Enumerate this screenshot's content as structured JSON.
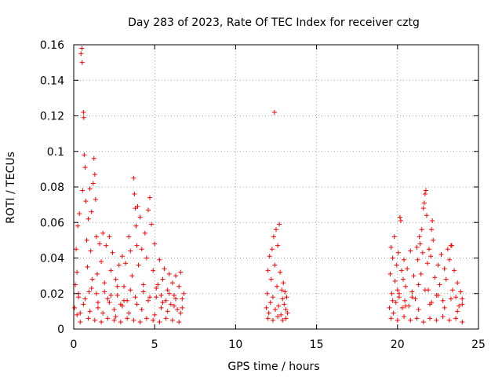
{
  "chart_data": {
    "type": "scatter",
    "title": "Day 283 of 2023, Rate Of TEC Index for receiver cztg",
    "xlabel": "GPS time / hours",
    "ylabel": "ROTI / TECUs",
    "xlim": [
      0,
      25
    ],
    "ylim": [
      0,
      0.16
    ],
    "xticks": [
      0,
      5,
      10,
      15,
      20,
      25
    ],
    "yticks": [
      0,
      0.02,
      0.04,
      0.06,
      0.08,
      0.1,
      0.12,
      0.14,
      0.16
    ],
    "xtick_labels": [
      "0",
      "5",
      "10",
      "15",
      "20",
      "25"
    ],
    "ytick_labels": [
      "0",
      "0.02",
      "0.04",
      "0.06",
      "0.08",
      "0.1",
      "0.12",
      "0.14",
      "0.16"
    ],
    "grid": true,
    "marker": "+",
    "marker_color": "#ff0000",
    "series": [
      {
        "name": "ROTI",
        "points": [
          [
            0.05,
            0.012
          ],
          [
            0.1,
            0.025
          ],
          [
            0.15,
            0.045
          ],
          [
            0.2,
            0.032
          ],
          [
            0.25,
            0.058
          ],
          [
            0.3,
            0.018
          ],
          [
            0.35,
            0.065
          ],
          [
            0.4,
            0.009
          ],
          [
            0.45,
            0.155
          ],
          [
            0.5,
            0.158
          ],
          [
            0.52,
            0.15
          ],
          [
            0.55,
            0.078
          ],
          [
            0.6,
            0.122
          ],
          [
            0.62,
            0.119
          ],
          [
            0.65,
            0.098
          ],
          [
            0.7,
            0.091
          ],
          [
            0.75,
            0.072
          ],
          [
            0.8,
            0.05
          ],
          [
            0.85,
            0.035
          ],
          [
            0.9,
            0.062
          ],
          [
            0.95,
            0.021
          ],
          [
            1.0,
            0.079
          ],
          [
            1.05,
            0.044
          ],
          [
            1.1,
            0.066
          ],
          [
            1.15,
            0.028
          ],
          [
            1.2,
            0.082
          ],
          [
            1.25,
            0.096
          ],
          [
            1.3,
            0.087
          ],
          [
            1.35,
            0.073
          ],
          [
            1.4,
            0.052
          ],
          [
            1.45,
            0.031
          ],
          [
            1.5,
            0.015
          ],
          [
            1.6,
            0.048
          ],
          [
            1.7,
            0.038
          ],
          [
            1.8,
            0.054
          ],
          [
            1.9,
            0.026
          ],
          [
            2.0,
            0.047
          ],
          [
            2.1,
            0.017
          ],
          [
            2.2,
            0.052
          ],
          [
            2.3,
            0.033
          ],
          [
            2.4,
            0.043
          ],
          [
            2.5,
            0.011
          ],
          [
            2.6,
            0.028
          ],
          [
            2.7,
            0.019
          ],
          [
            2.8,
            0.036
          ],
          [
            2.9,
            0.014
          ],
          [
            3.0,
            0.041
          ],
          [
            3.1,
            0.024
          ],
          [
            3.2,
            0.037
          ],
          [
            3.3,
            0.016
          ],
          [
            3.4,
            0.052
          ],
          [
            3.5,
            0.044
          ],
          [
            3.6,
            0.03
          ],
          [
            3.7,
            0.085
          ],
          [
            3.75,
            0.076
          ],
          [
            3.8,
            0.068
          ],
          [
            3.85,
            0.058
          ],
          [
            3.9,
            0.047
          ],
          [
            3.95,
            0.069
          ],
          [
            4.0,
            0.036
          ],
          [
            4.1,
            0.063
          ],
          [
            4.2,
            0.045
          ],
          [
            4.3,
            0.021
          ],
          [
            4.4,
            0.054
          ],
          [
            4.5,
            0.04
          ],
          [
            4.6,
            0.067
          ],
          [
            4.7,
            0.074
          ],
          [
            4.8,
            0.059
          ],
          [
            4.9,
            0.033
          ],
          [
            5.0,
            0.048
          ],
          [
            5.1,
            0.018
          ],
          [
            5.2,
            0.025
          ],
          [
            5.3,
            0.039
          ],
          [
            5.4,
            0.012
          ],
          [
            5.5,
            0.028
          ],
          [
            5.6,
            0.034
          ],
          [
            5.7,
            0.016
          ],
          [
            5.8,
            0.022
          ],
          [
            5.9,
            0.031
          ],
          [
            6.0,
            0.014
          ],
          [
            6.1,
            0.026
          ],
          [
            6.2,
            0.019
          ],
          [
            6.3,
            0.03
          ],
          [
            6.4,
            0.011
          ],
          [
            6.5,
            0.024
          ],
          [
            6.6,
            0.032
          ],
          [
            6.7,
            0.017
          ],
          [
            6.8,
            0.02
          ],
          [
            0.2,
            0.008
          ],
          [
            0.6,
            0.014
          ],
          [
            1.0,
            0.01
          ],
          [
            1.4,
            0.02
          ],
          [
            1.8,
            0.009
          ],
          [
            2.2,
            0.015
          ],
          [
            2.6,
            0.007
          ],
          [
            3.0,
            0.013
          ],
          [
            3.4,
            0.009
          ],
          [
            3.8,
            0.018
          ],
          [
            4.2,
            0.011
          ],
          [
            4.6,
            0.016
          ],
          [
            5.0,
            0.008
          ],
          [
            5.4,
            0.019
          ],
          [
            5.8,
            0.01
          ],
          [
            6.2,
            0.013
          ],
          [
            6.6,
            0.009
          ],
          [
            0.3,
            0.02
          ],
          [
            0.7,
            0.017
          ],
          [
            1.1,
            0.023
          ],
          [
            1.5,
            0.012
          ],
          [
            1.9,
            0.021
          ],
          [
            2.3,
            0.019
          ],
          [
            2.7,
            0.024
          ],
          [
            3.1,
            0.016
          ],
          [
            3.5,
            0.022
          ],
          [
            3.9,
            0.014
          ],
          [
            4.3,
            0.025
          ],
          [
            4.7,
            0.018
          ],
          [
            5.1,
            0.023
          ],
          [
            5.5,
            0.015
          ],
          [
            5.9,
            0.02
          ],
          [
            6.3,
            0.017
          ],
          [
            6.7,
            0.012
          ],
          [
            0.4,
            0.004
          ],
          [
            0.9,
            0.006
          ],
          [
            1.3,
            0.005
          ],
          [
            1.7,
            0.004
          ],
          [
            2.1,
            0.006
          ],
          [
            2.5,
            0.005
          ],
          [
            2.9,
            0.004
          ],
          [
            3.3,
            0.006
          ],
          [
            3.7,
            0.005
          ],
          [
            4.1,
            0.004
          ],
          [
            4.5,
            0.006
          ],
          [
            4.9,
            0.005
          ],
          [
            5.3,
            0.004
          ],
          [
            5.7,
            0.006
          ],
          [
            6.1,
            0.005
          ],
          [
            6.5,
            0.004
          ],
          [
            11.9,
            0.012
          ],
          [
            11.95,
            0.02
          ],
          [
            12.0,
            0.033
          ],
          [
            12.05,
            0.009
          ],
          [
            12.1,
            0.041
          ],
          [
            12.15,
            0.015
          ],
          [
            12.2,
            0.028
          ],
          [
            12.25,
            0.045
          ],
          [
            12.3,
            0.018
          ],
          [
            12.35,
            0.052
          ],
          [
            12.4,
            0.122
          ],
          [
            12.42,
            0.036
          ],
          [
            12.45,
            0.011
          ],
          [
            12.5,
            0.056
          ],
          [
            12.55,
            0.024
          ],
          [
            12.6,
            0.047
          ],
          [
            12.65,
            0.013
          ],
          [
            12.7,
            0.059
          ],
          [
            12.75,
            0.032
          ],
          [
            12.8,
            0.008
          ],
          [
            12.85,
            0.022
          ],
          [
            12.9,
            0.017
          ],
          [
            12.95,
            0.026
          ],
          [
            13.0,
            0.014
          ],
          [
            13.05,
            0.021
          ],
          [
            13.1,
            0.011
          ],
          [
            13.15,
            0.018
          ],
          [
            13.2,
            0.009
          ],
          [
            12.0,
            0.006
          ],
          [
            12.3,
            0.005
          ],
          [
            12.6,
            0.007
          ],
          [
            12.9,
            0.005
          ],
          [
            13.1,
            0.006
          ],
          [
            19.5,
            0.012
          ],
          [
            19.55,
            0.031
          ],
          [
            19.6,
            0.046
          ],
          [
            19.65,
            0.02
          ],
          [
            19.7,
            0.04
          ],
          [
            19.75,
            0.009
          ],
          [
            19.8,
            0.052
          ],
          [
            19.85,
            0.027
          ],
          [
            19.9,
            0.015
          ],
          [
            19.95,
            0.036
          ],
          [
            20.0,
            0.022
          ],
          [
            20.05,
            0.043
          ],
          [
            20.1,
            0.018
          ],
          [
            20.15,
            0.063
          ],
          [
            20.2,
            0.061
          ],
          [
            20.25,
            0.033
          ],
          [
            20.3,
            0.012
          ],
          [
            20.35,
            0.028
          ],
          [
            20.4,
            0.039
          ],
          [
            20.45,
            0.016
          ],
          [
            20.5,
            0.024
          ],
          [
            20.6,
            0.034
          ],
          [
            20.7,
            0.013
          ],
          [
            20.8,
            0.044
          ],
          [
            20.9,
            0.021
          ],
          [
            21.0,
            0.03
          ],
          [
            21.1,
            0.017
          ],
          [
            21.2,
            0.046
          ],
          [
            21.25,
            0.039
          ],
          [
            21.3,
            0.025
          ],
          [
            21.35,
            0.052
          ],
          [
            21.4,
            0.048
          ],
          [
            21.45,
            0.031
          ],
          [
            21.5,
            0.056
          ],
          [
            21.55,
            0.043
          ],
          [
            21.6,
            0.068
          ],
          [
            21.65,
            0.071
          ],
          [
            21.7,
            0.076
          ],
          [
            21.75,
            0.078
          ],
          [
            21.8,
            0.064
          ],
          [
            21.85,
            0.037
          ],
          [
            21.9,
            0.022
          ],
          [
            21.95,
            0.045
          ],
          [
            22.0,
            0.014
          ],
          [
            22.05,
            0.041
          ],
          [
            22.1,
            0.056
          ],
          [
            22.15,
            0.061
          ],
          [
            22.2,
            0.05
          ],
          [
            22.3,
            0.029
          ],
          [
            22.4,
            0.019
          ],
          [
            22.5,
            0.036
          ],
          [
            22.6,
            0.025
          ],
          [
            22.7,
            0.042
          ],
          [
            22.8,
            0.016
          ],
          [
            22.9,
            0.034
          ],
          [
            23.0,
            0.028
          ],
          [
            23.1,
            0.045
          ],
          [
            23.2,
            0.039
          ],
          [
            23.3,
            0.047
          ],
          [
            23.35,
            0.047
          ],
          [
            23.4,
            0.022
          ],
          [
            23.5,
            0.033
          ],
          [
            23.6,
            0.018
          ],
          [
            23.7,
            0.026
          ],
          [
            23.8,
            0.013
          ],
          [
            23.9,
            0.021
          ],
          [
            24.0,
            0.017
          ],
          [
            19.6,
            0.006
          ],
          [
            20.0,
            0.005
          ],
          [
            20.4,
            0.007
          ],
          [
            20.8,
            0.005
          ],
          [
            21.2,
            0.006
          ],
          [
            21.6,
            0.004
          ],
          [
            22.0,
            0.006
          ],
          [
            22.4,
            0.005
          ],
          [
            22.8,
            0.007
          ],
          [
            23.2,
            0.005
          ],
          [
            23.6,
            0.006
          ],
          [
            24.0,
            0.004
          ],
          [
            19.7,
            0.016
          ],
          [
            20.1,
            0.02
          ],
          [
            20.5,
            0.013
          ],
          [
            20.9,
            0.018
          ],
          [
            21.3,
            0.011
          ],
          [
            21.7,
            0.022
          ],
          [
            22.1,
            0.015
          ],
          [
            22.5,
            0.019
          ],
          [
            22.9,
            0.012
          ],
          [
            23.3,
            0.017
          ],
          [
            23.7,
            0.01
          ],
          [
            24.0,
            0.014
          ]
        ]
      }
    ]
  }
}
